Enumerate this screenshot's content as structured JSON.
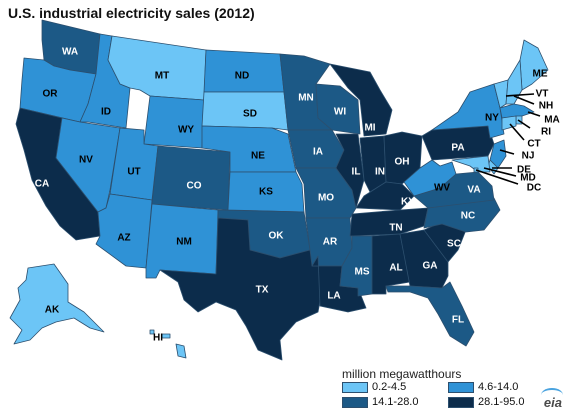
{
  "title": "U.S. industrial electricity sales (2012)",
  "legend": {
    "title": "million megawatthours",
    "items": [
      {
        "label": "0.2-4.5",
        "color": "#6cc5f6"
      },
      {
        "label": "4.6-14.0",
        "color": "#2f92d6"
      },
      {
        "label": "14.1-28.0",
        "color": "#1c5986"
      },
      {
        "label": "28.1-95.0",
        "color": "#0c2c4b"
      }
    ]
  },
  "logo": "eia",
  "states": [
    {
      "abbr": "WA",
      "tier": 2
    },
    {
      "abbr": "OR",
      "tier": 1
    },
    {
      "abbr": "CA",
      "tier": 3
    },
    {
      "abbr": "ID",
      "tier": 1
    },
    {
      "abbr": "NV",
      "tier": 1
    },
    {
      "abbr": "MT",
      "tier": 0
    },
    {
      "abbr": "WY",
      "tier": 1
    },
    {
      "abbr": "UT",
      "tier": 1
    },
    {
      "abbr": "AZ",
      "tier": 1
    },
    {
      "abbr": "CO",
      "tier": 2
    },
    {
      "abbr": "NM",
      "tier": 1
    },
    {
      "abbr": "ND",
      "tier": 1
    },
    {
      "abbr": "SD",
      "tier": 0
    },
    {
      "abbr": "NE",
      "tier": 1
    },
    {
      "abbr": "KS",
      "tier": 1
    },
    {
      "abbr": "OK",
      "tier": 2
    },
    {
      "abbr": "TX",
      "tier": 3
    },
    {
      "abbr": "MN",
      "tier": 2
    },
    {
      "abbr": "IA",
      "tier": 2
    },
    {
      "abbr": "MO",
      "tier": 2
    },
    {
      "abbr": "AR",
      "tier": 2
    },
    {
      "abbr": "LA",
      "tier": 3
    },
    {
      "abbr": "WI",
      "tier": 2
    },
    {
      "abbr": "IL",
      "tier": 3
    },
    {
      "abbr": "MI",
      "tier": 3
    },
    {
      "abbr": "IN",
      "tier": 3
    },
    {
      "abbr": "OH",
      "tier": 3
    },
    {
      "abbr": "KY",
      "tier": 3
    },
    {
      "abbr": "TN",
      "tier": 3
    },
    {
      "abbr": "MS",
      "tier": 2
    },
    {
      "abbr": "AL",
      "tier": 3
    },
    {
      "abbr": "GA",
      "tier": 3
    },
    {
      "abbr": "FL",
      "tier": 2
    },
    {
      "abbr": "SC",
      "tier": 3
    },
    {
      "abbr": "NC",
      "tier": 2
    },
    {
      "abbr": "VA",
      "tier": 2
    },
    {
      "abbr": "WV",
      "tier": 1
    },
    {
      "abbr": "PA",
      "tier": 3
    },
    {
      "abbr": "NY",
      "tier": 1
    },
    {
      "abbr": "ME",
      "tier": 0
    },
    {
      "abbr": "VT",
      "tier": 0
    },
    {
      "abbr": "NH",
      "tier": 0
    },
    {
      "abbr": "MA",
      "tier": 1
    },
    {
      "abbr": "RI",
      "tier": 0
    },
    {
      "abbr": "CT",
      "tier": 0
    },
    {
      "abbr": "NJ",
      "tier": 1
    },
    {
      "abbr": "DE",
      "tier": 0
    },
    {
      "abbr": "MD",
      "tier": 0
    },
    {
      "abbr": "DC",
      "tier": 0
    },
    {
      "abbr": "AK",
      "tier": 0
    },
    {
      "abbr": "HI",
      "tier": 0
    }
  ]
}
